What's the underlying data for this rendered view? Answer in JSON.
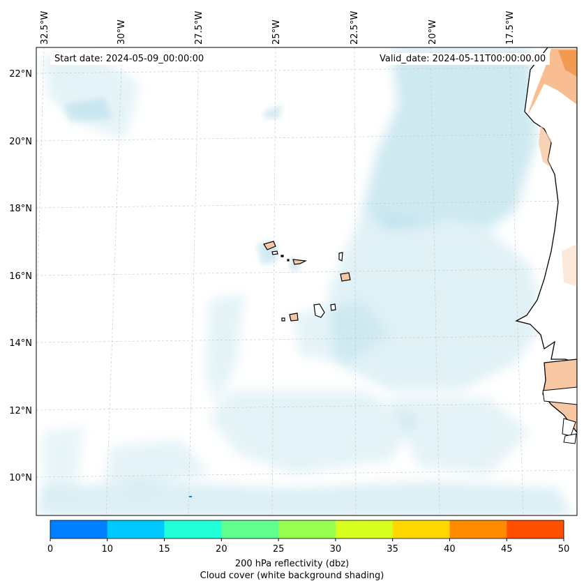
{
  "start_label": "Start date: 2024-05-09_00:00:00",
  "valid_label": "Valid_date: 2024-05-11T00:00:00.00",
  "lon_ticks": [
    "32.5°W",
    "30°W",
    "27.5°W",
    "25°W",
    "22.5°W",
    "20°W",
    "17.5°W"
  ],
  "lat_ticks": [
    "22°N",
    "20°N",
    "18°N",
    "16°N",
    "14°N",
    "12°N",
    "10°N"
  ],
  "colorbar": {
    "title": "200 hPa reflectivity (dbz)",
    "subtitle": "Cloud cover (white background shading)",
    "ticks": [
      "0",
      "10",
      "15",
      "20",
      "25",
      "30",
      "35",
      "40",
      "45",
      "50"
    ],
    "colors": [
      "#0080ff",
      "#00c8ff",
      "#20ffd8",
      "#60ff90",
      "#98ff50",
      "#d8ff20",
      "#ffd800",
      "#ff8c00",
      "#ff5000"
    ]
  },
  "palette": {
    "cloud": "#a8d8e6",
    "land": "#f7c7a3",
    "land_dark": "#f0964a",
    "coast": "#000000",
    "grid": "#c8c8c8"
  }
}
